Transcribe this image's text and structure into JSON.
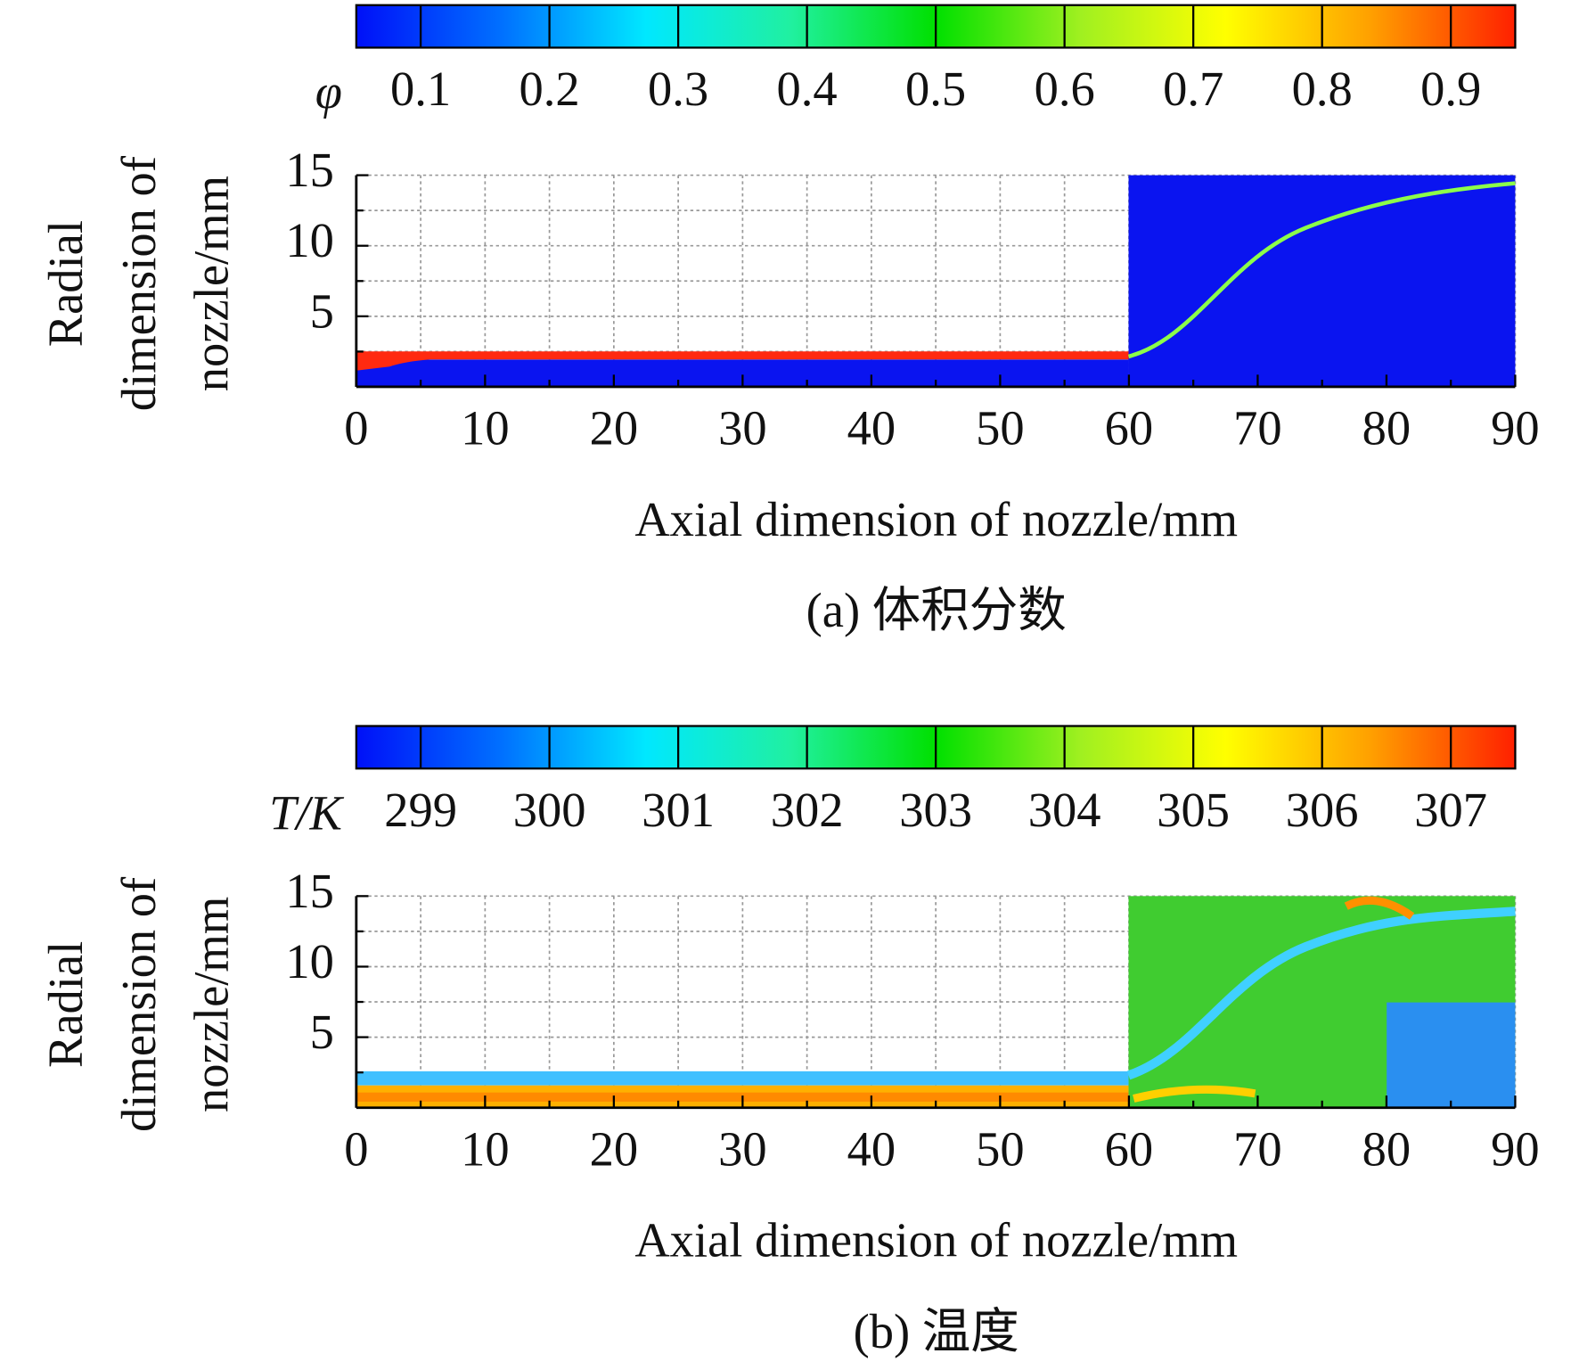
{
  "chart_data": [
    {
      "type": "heatmap",
      "colormap": "jet",
      "colorbar": {
        "label": "φ",
        "lim": [
          0.05,
          0.95
        ],
        "ticks": [
          0.1,
          0.2,
          0.3,
          0.4,
          0.5,
          0.6,
          0.7,
          0.8,
          0.9
        ]
      },
      "xlabel": "Axial dimension of nozzle/mm",
      "ylabel": [
        "Radial",
        "dimension of",
        "nozzle/mm"
      ],
      "xlim": [
        0,
        90
      ],
      "xticks": [
        0,
        10,
        20,
        30,
        40,
        50,
        60,
        70,
        80,
        90
      ],
      "ylim": [
        0,
        15
      ],
      "yticks": [
        5,
        10,
        15
      ],
      "grid": true,
      "caption": "(a) 体积分数"
    },
    {
      "type": "heatmap",
      "colormap": "jet",
      "colorbar": {
        "label": "T/K",
        "lim": [
          298.5,
          307.5
        ],
        "ticks": [
          299,
          300,
          301,
          302,
          303,
          304,
          305,
          306,
          307
        ]
      },
      "xlabel": "Axial dimension of nozzle/mm",
      "ylabel": [
        "Radial",
        "dimension of",
        "nozzle/mm"
      ],
      "xlim": [
        0,
        90
      ],
      "xticks": [
        0,
        10,
        20,
        30,
        40,
        50,
        60,
        70,
        80,
        90
      ],
      "ylim": [
        0,
        15
      ],
      "yticks": [
        5,
        10,
        15
      ],
      "grid": true,
      "caption": "(b) 温度"
    }
  ]
}
